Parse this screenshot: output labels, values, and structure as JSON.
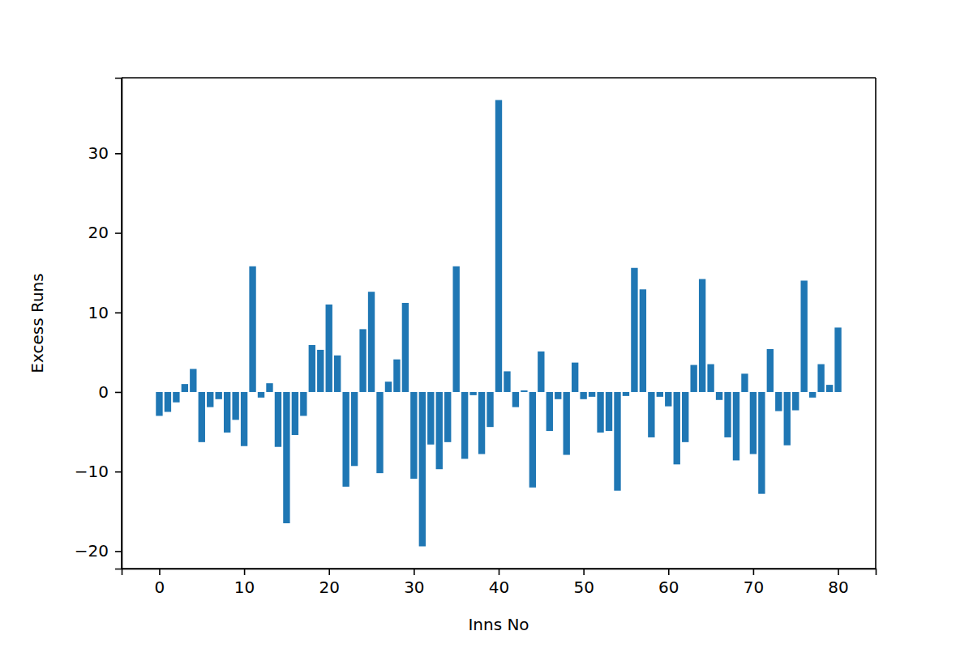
{
  "chart_data": {
    "type": "bar",
    "x_label": "Inns No",
    "y_label": "Excess Runs",
    "x": [
      0,
      1,
      2,
      3,
      4,
      5,
      6,
      7,
      8,
      9,
      10,
      11,
      12,
      13,
      14,
      15,
      16,
      17,
      18,
      19,
      20,
      21,
      22,
      23,
      24,
      25,
      26,
      27,
      28,
      29,
      30,
      31,
      32,
      33,
      34,
      35,
      36,
      37,
      38,
      39,
      40,
      41,
      42,
      43,
      44,
      45,
      46,
      47,
      48,
      49,
      50,
      51,
      52,
      53,
      54,
      55,
      56,
      57,
      58,
      59,
      60,
      61,
      62,
      63,
      64,
      65,
      66,
      67,
      68,
      69,
      70,
      71,
      72,
      73,
      74,
      75,
      76,
      77,
      78,
      79,
      80
    ],
    "values": [
      -3.0,
      -2.5,
      -1.3,
      1.0,
      2.9,
      -6.3,
      -1.9,
      -0.9,
      -5.1,
      -3.5,
      -6.8,
      15.8,
      -0.7,
      1.1,
      -6.9,
      -16.5,
      -5.4,
      -3.0,
      5.9,
      5.3,
      11.0,
      4.6,
      -11.9,
      -9.3,
      7.9,
      12.6,
      -10.2,
      1.3,
      4.1,
      11.2,
      -10.9,
      -19.4,
      -6.6,
      -9.7,
      -6.3,
      15.8,
      -8.4,
      -0.4,
      -7.8,
      -4.4,
      36.7,
      2.6,
      -1.9,
      0.2,
      -12.0,
      5.1,
      -4.9,
      -0.9,
      -7.9,
      3.7,
      -0.9,
      -0.6,
      -5.1,
      -4.9,
      -12.4,
      -0.5,
      15.6,
      12.9,
      -5.7,
      -0.6,
      -1.8,
      -9.1,
      -6.3,
      3.4,
      14.2,
      3.5,
      -1.0,
      -5.7,
      -8.6,
      2.3,
      -7.8,
      -12.8,
      5.4,
      -2.4,
      -6.7,
      -2.3,
      14.0,
      -0.7,
      3.5,
      0.9,
      8.1
    ],
    "color": "#1f77b4",
    "xlim": [
      -4.44,
      84.44
    ],
    "xticks": [
      0,
      10,
      20,
      30,
      40,
      50,
      60,
      70,
      80
    ],
    "ylim": [
      -22.2,
      39.5
    ],
    "yticks": [
      -20,
      -10,
      0,
      10,
      20,
      30
    ],
    "grid": false
  }
}
